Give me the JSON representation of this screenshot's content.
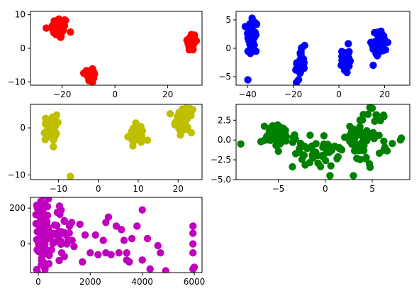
{
  "chart_data": [
    {
      "type": "scatter",
      "color": "#ff0000",
      "xlim": [
        -32,
        33
      ],
      "ylim": [
        -11,
        11
      ],
      "xticks": [
        -20,
        0,
        20
      ],
      "yticks": [
        -10,
        0,
        10
      ],
      "xtick_labels": [
        "−20",
        "0",
        "20"
      ],
      "ytick_labels": [
        "−10",
        "0",
        "10"
      ],
      "clusters": [
        {
          "cx": -21,
          "cy": 6,
          "sx": 1.5,
          "sy": 1.6,
          "n": 70
        },
        {
          "cx": -9,
          "cy": -8,
          "sx": 0.7,
          "sy": 1.2,
          "n": 40
        },
        {
          "cx": 29,
          "cy": 2,
          "sx": 0.8,
          "sy": 1.4,
          "n": 50
        }
      ],
      "points": [
        [
          -26,
          6
        ]
      ]
    },
    {
      "type": "scatter",
      "color": "#0000ff",
      "xlim": [
        -45,
        31
      ],
      "ylim": [
        -6.5,
        6.5
      ],
      "xticks": [
        -40,
        -20,
        0,
        20
      ],
      "yticks": [
        -5,
        0,
        5
      ],
      "xtick_labels": [
        "−40",
        "−20",
        "0",
        "20"
      ],
      "ytick_labels": [
        "−5",
        "0",
        "5"
      ],
      "clusters": [
        {
          "cx": -38,
          "cy": 2,
          "sx": 1.2,
          "sy": 1.8,
          "n": 45
        },
        {
          "cx": -17,
          "cy": -3,
          "sx": 1.0,
          "sy": 1.3,
          "n": 35
        },
        {
          "cx": 3,
          "cy": -2,
          "sx": 0.8,
          "sy": 1.2,
          "n": 45
        },
        {
          "cx": 18,
          "cy": 1,
          "sx": 1.6,
          "sy": 1.0,
          "n": 55
        }
      ],
      "points": [
        [
          -15,
          0.5
        ],
        [
          15,
          -3
        ],
        [
          -38,
          5.3
        ]
      ]
    },
    {
      "type": "scatter",
      "color": "#bfbf00",
      "xlim": [
        -17,
        26
      ],
      "ylim": [
        -11,
        5
      ],
      "xticks": [
        -10,
        0,
        10,
        20
      ],
      "yticks": [
        -10,
        0
      ],
      "xtick_labels": [
        "−10",
        "0",
        "10",
        "20"
      ],
      "ytick_labels": [
        "−10",
        "0"
      ],
      "clusters": [
        {
          "cx": -12,
          "cy": 0,
          "sx": 0.8,
          "sy": 1.4,
          "n": 45
        },
        {
          "cx": 9.5,
          "cy": -1.5,
          "sx": 1.0,
          "sy": 1.0,
          "n": 40
        },
        {
          "cx": 21.5,
          "cy": 1.5,
          "sx": 1.0,
          "sy": 1.2,
          "n": 45
        }
      ],
      "points": [
        [
          -7,
          -10.3
        ],
        [
          18,
          3
        ],
        [
          22,
          4.2
        ]
      ]
    },
    {
      "type": "scatter",
      "color": "#008000",
      "xlim": [
        -9.5,
        9
      ],
      "ylim": [
        -5,
        4.5
      ],
      "xticks": [
        -5,
        0,
        5
      ],
      "yticks": [
        -5.0,
        -2.5,
        0.0,
        2.5
      ],
      "xtick_labels": [
        "−5",
        "0",
        "5"
      ],
      "ytick_labels": [
        "−5.0",
        "−2.5",
        "0.0",
        "2.5"
      ],
      "clusters": [
        {
          "cx": -5,
          "cy": 0.5,
          "sx": 0.9,
          "sy": 0.7,
          "n": 60
        },
        {
          "cx": -1,
          "cy": -1.5,
          "sx": 1.2,
          "sy": 1.0,
          "n": 45
        },
        {
          "cx": 4.5,
          "cy": 0.5,
          "sx": 1.2,
          "sy": 1.8,
          "n": 60
        }
      ],
      "points": [
        [
          -9,
          -0.5
        ],
        [
          8,
          0
        ],
        [
          0.5,
          -4.5
        ],
        [
          3,
          -4.5
        ],
        [
          5,
          4
        ]
      ]
    },
    {
      "type": "scatter",
      "color": "#bf00bf",
      "xlim": [
        -300,
        6300
      ],
      "ylim": [
        -160,
        260
      ],
      "xticks": [
        0,
        2000,
        4000,
        6000
      ],
      "yticks": [
        0,
        200
      ],
      "xtick_labels": [
        "0",
        "2000",
        "4000",
        "6000"
      ],
      "ytick_labels": [
        "0",
        "200"
      ],
      "clusters": [
        {
          "cx": 150,
          "cy": 50,
          "sx": 100,
          "sy": 100,
          "n": 120
        },
        {
          "cx": 700,
          "cy": 50,
          "sx": 300,
          "sy": 100,
          "n": 40
        }
      ],
      "points": [
        [
          5950,
          100
        ],
        [
          5950,
          60
        ],
        [
          5950,
          0
        ],
        [
          5950,
          -50
        ],
        [
          6000,
          -130
        ],
        [
          5950,
          -140
        ],
        [
          4000,
          190
        ],
        [
          3800,
          100
        ],
        [
          2600,
          120
        ],
        [
          3000,
          100
        ],
        [
          3200,
          80
        ],
        [
          3600,
          30
        ],
        [
          3400,
          -50
        ],
        [
          3400,
          -90
        ],
        [
          3500,
          -100
        ],
        [
          4200,
          30
        ],
        [
          4600,
          -10
        ],
        [
          4700,
          -50
        ],
        [
          4900,
          -150
        ],
        [
          4300,
          -140
        ],
        [
          4000,
          -90
        ],
        [
          3100,
          -50
        ],
        [
          2800,
          -60
        ],
        [
          2600,
          -50
        ],
        [
          2300,
          -60
        ],
        [
          2000,
          -50
        ],
        [
          1700,
          -100
        ],
        [
          2200,
          50
        ],
        [
          1800,
          50
        ],
        [
          2500,
          20
        ],
        [
          1600,
          110
        ],
        [
          1200,
          100
        ],
        [
          1000,
          130
        ],
        [
          1100,
          0
        ],
        [
          1300,
          20
        ],
        [
          900,
          -50
        ],
        [
          1000,
          -70
        ],
        [
          800,
          70
        ],
        [
          3300,
          20
        ],
        [
          2700,
          150
        ]
      ]
    }
  ]
}
